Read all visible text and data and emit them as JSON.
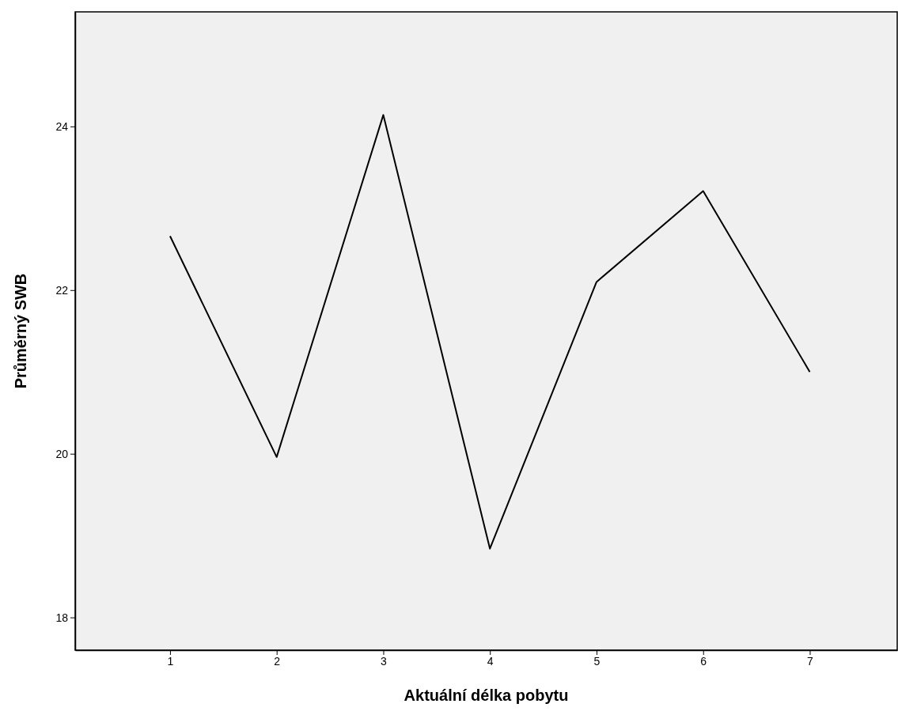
{
  "chart_data": {
    "type": "line",
    "xlabel": "Aktuální délka pobytu",
    "ylabel": "Průměrný SWB",
    "x": [
      1,
      2,
      3,
      4,
      5,
      6,
      7
    ],
    "series": [
      {
        "color": "#000000",
        "values": [
          22.66,
          19.96,
          24.14,
          18.84,
          22.1,
          23.21,
          21.0
        ]
      }
    ],
    "xlim": [
      0.11,
      7.82
    ],
    "xticks": [
      1,
      2,
      3,
      4,
      5,
      6,
      7
    ],
    "ylim": [
      17.6,
      25.4
    ],
    "yticks": [
      18,
      20,
      22,
      24
    ],
    "grid": false,
    "marker": "none",
    "line_style": "solid"
  }
}
